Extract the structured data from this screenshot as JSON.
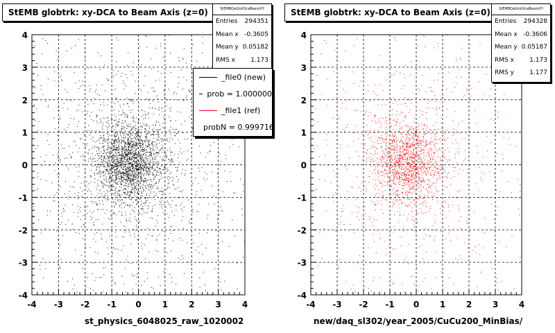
{
  "chart_data": [
    {
      "type": "scatter",
      "title": "StEMB globtrk: xy-DCA to Beam Axis (z=0)",
      "xlabel": "st_physics_6048025_raw_1020002",
      "ylabel": "",
      "xlim": [
        -4,
        4
      ],
      "ylim": [
        -4,
        4
      ],
      "x_ticks": [
        "-4",
        "-3",
        "-2",
        "-1",
        "0",
        "1",
        "2",
        "3",
        "4"
      ],
      "y_ticks": [
        "-4",
        "-3",
        "-2",
        "-1",
        "0",
        "1",
        "2",
        "3",
        "4"
      ],
      "grid": true,
      "marker_color": "#000000",
      "distribution": {
        "center_x": -0.36,
        "center_y": 0.05,
        "rms_x": 1.173
      },
      "stats": {
        "name": "StEMBQaGlrkDcaBeamXY",
        "rows": [
          {
            "label": "Entries",
            "value": "294351"
          },
          {
            "label": "Mean x",
            "value": "-0.3605"
          },
          {
            "label": "Mean y",
            "value": "0.05182"
          },
          {
            "label": "RMS x",
            "value": "1.173"
          }
        ]
      },
      "legend": {
        "placement": "top-right",
        "entries": [
          {
            "label": "_file0 (new)",
            "color": "#000000"
          },
          {
            "label": "prob = 1.000000",
            "color": "#000000"
          },
          {
            "label": "_file1 (ref)",
            "color": "#ff0000"
          },
          {
            "label": "probN = 0.999716",
            "color": "#ff0000"
          }
        ]
      }
    },
    {
      "type": "scatter",
      "title": "StEMB globtrk: xy-DCA to Beam Axis (z=0)",
      "xlabel": "new/daq_sl302/year_2005/CuCu200_MinBias/",
      "ylabel": "",
      "xlim": [
        -4,
        4
      ],
      "ylim": [
        -4,
        4
      ],
      "x_ticks": [
        "-4",
        "-3",
        "-2",
        "-1",
        "0",
        "1",
        "2",
        "3",
        "4"
      ],
      "y_ticks": [
        "-4",
        "-3",
        "-2",
        "-1",
        "0",
        "1",
        "2",
        "3",
        "4"
      ],
      "grid": true,
      "marker_color": "#ff0000",
      "distribution": {
        "center_x": -0.36,
        "center_y": 0.05,
        "rms_x": 1.173,
        "rms_y": 1.177
      },
      "stats": {
        "name": "StEMBQaGlrkDcaBeamXY",
        "rows": [
          {
            "label": "Entries",
            "value": "294328"
          },
          {
            "label": "Mean x",
            "value": "-0.3606"
          },
          {
            "label": "Mean y",
            "value": "0.05187"
          },
          {
            "label": "RMS x",
            "value": "1.173"
          },
          {
            "label": "RMS y",
            "value": "1.177"
          }
        ]
      }
    }
  ]
}
